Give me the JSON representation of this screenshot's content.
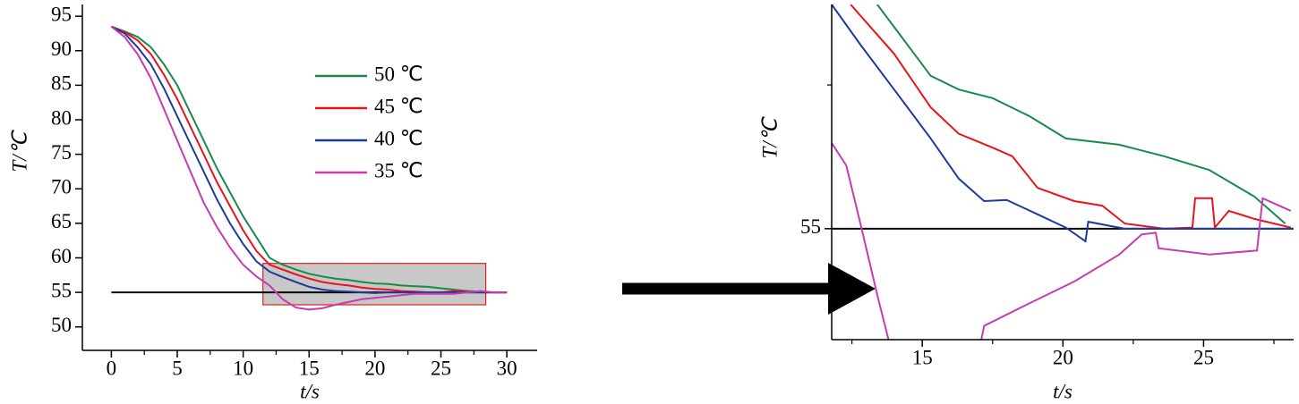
{
  "chart_data": [
    {
      "type": "line",
      "xlabel": "t/s",
      "ylabel": "T/℃",
      "x": [
        0,
        1,
        2,
        3,
        4,
        5,
        6,
        7,
        8,
        9,
        10,
        11,
        12,
        13,
        14,
        15,
        16,
        17,
        18,
        19,
        20,
        21,
        22,
        23,
        24,
        25,
        26,
        27,
        28,
        29,
        30
      ],
      "series": [
        {
          "name": "50 ℃",
          "color": "#1a8a4a",
          "values": [
            93.5,
            92.8,
            92,
            90.5,
            88,
            85,
            81,
            77,
            73,
            69.5,
            66,
            63,
            60,
            59,
            58.3,
            57.7,
            57.3,
            57,
            56.8,
            56.5,
            56.3,
            56.2,
            56,
            55.9,
            55.8,
            55.6,
            55.4,
            55.2,
            55.1,
            55,
            55
          ]
        },
        {
          "name": "45 ℃",
          "color": "#e8141b",
          "values": [
            93.5,
            92.7,
            91.5,
            89.5,
            86.5,
            83,
            79,
            75,
            71,
            67.5,
            64,
            61,
            59,
            58.3,
            57.6,
            57,
            56.5,
            56.2,
            56,
            55.7,
            55.5,
            55.4,
            55.2,
            55.1,
            55,
            55,
            55.2,
            55.1,
            55,
            55,
            55
          ]
        },
        {
          "name": "40 ℃",
          "color": "#1f3a9e",
          "values": [
            93.5,
            92.5,
            90.5,
            88,
            84.5,
            80.5,
            76.5,
            72.5,
            68.5,
            65,
            62,
            59.5,
            58,
            57.2,
            56.5,
            55.8,
            55.4,
            55.2,
            55.1,
            55,
            54.9,
            55,
            55,
            55,
            55,
            55,
            55,
            55,
            55,
            55,
            55
          ]
        },
        {
          "name": "35 ℃",
          "color": "#c83cae",
          "values": [
            93.5,
            92,
            89.5,
            86,
            81.5,
            77,
            72.5,
            68,
            64.5,
            61.5,
            59,
            57.3,
            56,
            54,
            52.8,
            52.5,
            52.7,
            53.2,
            53.6,
            54,
            54.2,
            54.4,
            54.6,
            54.8,
            54.8,
            54.8,
            54.8,
            55,
            55.2,
            55,
            55
          ]
        }
      ],
      "hline": {
        "value": 55,
        "xrange": [
          0,
          30
        ],
        "color": "#000000"
      },
      "highlight": {
        "x": [
          11.5,
          28.4
        ],
        "y": [
          53.2,
          59.2
        ],
        "fill": "#c8c8c8",
        "stroke": "#e02020"
      },
      "legend_loc": "upper right",
      "xlim": [
        -2.2,
        32.3
      ],
      "ylim": [
        46.6,
        96.7
      ],
      "xticks": [
        0,
        5,
        10,
        15,
        20,
        25,
        30
      ],
      "yticks": [
        50,
        55,
        60,
        65,
        70,
        75,
        80,
        85,
        90,
        95
      ],
      "minor_xticks": [
        2.5,
        7.5,
        12.5,
        17.5,
        22.5,
        27.5
      ]
    },
    {
      "type": "line",
      "xlabel": "t/s",
      "ylabel": "T/℃",
      "series": [
        {
          "color": "#1a8a4a",
          "x": [
            13.4,
            15.3,
            16.3,
            17.5,
            18.8,
            20.1,
            22,
            23.6,
            25.2,
            26.8,
            27.9
          ],
          "values": [
            58.9,
            57.66,
            57.42,
            57.27,
            56.96,
            56.57,
            56.46,
            56.26,
            56.02,
            55.56,
            55.09
          ]
        },
        {
          "color": "#e8141b",
          "x": [
            12.45,
            14.0,
            15.3,
            16.3,
            17.5,
            18.2,
            19.1,
            20.4,
            21.4,
            22.2,
            23.6,
            24.6,
            24.7,
            25.3,
            25.4,
            25.9,
            26.8,
            28.1
          ],
          "values": [
            58.9,
            58.04,
            57.11,
            56.65,
            56.41,
            56.26,
            55.71,
            55.48,
            55.4,
            55.09,
            55,
            55.02,
            55.53,
            55.53,
            55.02,
            55.31,
            55.17,
            55.02
          ]
        },
        {
          "color": "#1f3a9e",
          "x": [
            11.78,
            12.8,
            14.0,
            15.3,
            16.3,
            17.2,
            18.0,
            19.1,
            20.1,
            20.8,
            20.9,
            22.2,
            28.2
          ],
          "values": [
            58.9,
            58.2,
            57.42,
            56.57,
            55.87,
            55.48,
            55.5,
            55.25,
            55.02,
            54.78,
            55.12,
            55,
            55
          ]
        },
        {
          "color": "#c83cae",
          "x": [
            11.78,
            12.3,
            12.8,
            13.4,
            13.8,
            15.5,
            17.1,
            17.2,
            18.8,
            20.4,
            22.0,
            22.8,
            23.3,
            23.4,
            25.2,
            26.9,
            27.1,
            28.1
          ],
          "values": [
            56.49,
            56.1,
            55.09,
            53.85,
            53.07,
            null,
            53.07,
            53.31,
            53.7,
            54.08,
            54.55,
            54.9,
            54.93,
            54.66,
            54.55,
            54.62,
            55.53,
            55.31
          ]
        }
      ],
      "hline": {
        "value": 55,
        "color": "#000000"
      },
      "xlim": [
        11.78,
        28.2
      ],
      "ylim": [
        53.07,
        58.9
      ],
      "xticks": [
        15,
        20,
        25
      ],
      "yticks": [
        55
      ],
      "minor_xticks": [
        12.5,
        17.5,
        22.5,
        27.5
      ],
      "minor_yticks": [
        57.5
      ]
    }
  ]
}
